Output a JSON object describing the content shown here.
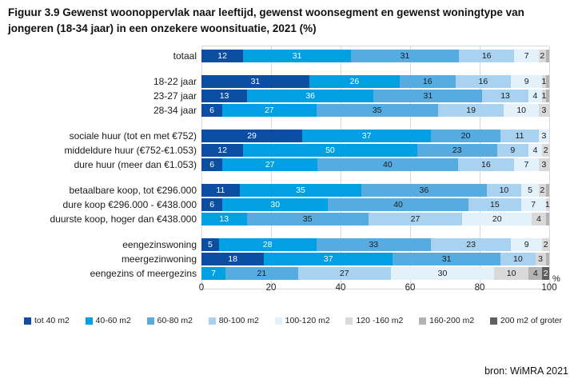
{
  "title": "Figuur 3.9 Gewenst woonoppervlak naar leeftijd, gewenst woonsegment en gewenst woningtype van jongeren (18-34 jaar) in een onzekere woonsituatie, 2021 (%)",
  "source": "bron: WiMRA 2021",
  "chart_data": {
    "type": "bar",
    "orientation": "horizontal",
    "stacked": true,
    "unit": "%",
    "axis": {
      "ticks": [
        0,
        20,
        40,
        60,
        80,
        100
      ],
      "max": 100,
      "unit_label": "%"
    },
    "grid": true,
    "legend_position": "bottom",
    "legend": [
      {
        "label": "tot 40 m2",
        "color": "#0b4ea2"
      },
      {
        "label": "40-60 m2",
        "color": "#00a0e3"
      },
      {
        "label": "60-80 m2",
        "color": "#56ace0"
      },
      {
        "label": "80-100 m2",
        "color": "#a9d2f0"
      },
      {
        "label": "100-120 m2",
        "color": "#e3f1fb"
      },
      {
        "label": "120 -160 m2",
        "color": "#d9d9d9"
      },
      {
        "label": "160-200 m2",
        "color": "#b3b3b3"
      },
      {
        "label": "200 m2 of groter",
        "color": "#5f5f5f"
      }
    ],
    "groups": [
      {
        "rows": [
          {
            "label": "totaal",
            "values": [
              12,
              31,
              31,
              16,
              7,
              2,
              1,
              0
            ],
            "display": [
              "12",
              "31",
              "31",
              "16",
              "7",
              "2",
              "",
              ""
            ]
          }
        ]
      },
      {
        "rows": [
          {
            "label": "18-22 jaar",
            "values": [
              31,
              26,
              16,
              16,
              9,
              1,
              1,
              0
            ],
            "display": [
              "31",
              "26",
              "16",
              "16",
              "9",
              "1",
              "",
              ""
            ]
          },
          {
            "label": "23-27 jaar",
            "values": [
              13,
              36,
              31,
              13,
              4,
              1,
              1,
              0
            ],
            "display": [
              "13",
              "36",
              "31",
              "13",
              "4",
              "1",
              "",
              ""
            ]
          },
          {
            "label": "28-34 jaar",
            "values": [
              6,
              27,
              35,
              19,
              10,
              3,
              0,
              0
            ],
            "display": [
              "6",
              "27",
              "35",
              "19",
              "10",
              "3",
              "",
              ""
            ]
          }
        ]
      },
      {
        "rows": [
          {
            "label": "sociale huur (tot en met €752)",
            "values": [
              29,
              37,
              20,
              11,
              3,
              0,
              0,
              0
            ],
            "display": [
              "29",
              "37",
              "20",
              "11",
              "3",
              "",
              "",
              ""
            ]
          },
          {
            "label": "middeldure huur (€752-€1.053)",
            "values": [
              12,
              50,
              23,
              9,
              4,
              2,
              0,
              0
            ],
            "display": [
              "12",
              "50",
              "23",
              "9",
              "4",
              "2",
              "",
              ""
            ]
          },
          {
            "label": "dure huur (meer dan €1.053)",
            "values": [
              6,
              27,
              40,
              16,
              7,
              3,
              0,
              0
            ],
            "display": [
              "6",
              "27",
              "40",
              "16",
              "7",
              "3",
              "",
              ""
            ]
          }
        ]
      },
      {
        "rows": [
          {
            "label": "betaalbare koop, tot €296.000",
            "values": [
              11,
              35,
              36,
              10,
              5,
              2,
              1,
              0
            ],
            "display": [
              "11",
              "35",
              "36",
              "10",
              "5",
              "2",
              "",
              ""
            ]
          },
          {
            "label": "dure koop €296.000 - €438.000",
            "values": [
              6,
              30,
              40,
              15,
              7,
              1,
              0,
              0
            ],
            "display": [
              "6",
              "30",
              "40",
              "15",
              "7",
              "1",
              "",
              ""
            ]
          },
          {
            "label": "duurste koop, hoger dan €438.000",
            "values": [
              0,
              13,
              35,
              27,
              20,
              4,
              1,
              0
            ],
            "display": [
              "",
              "13",
              "35",
              "27",
              "20",
              "4",
              "",
              ""
            ]
          }
        ]
      },
      {
        "rows": [
          {
            "label": "eengezinswoning",
            "values": [
              5,
              28,
              33,
              23,
              9,
              2,
              0,
              0
            ],
            "display": [
              "5",
              "28",
              "33",
              "23",
              "9",
              "2",
              "",
              ""
            ]
          },
          {
            "label": "meergezinwoning",
            "values": [
              18,
              37,
              31,
              10,
              0,
              3,
              1,
              0
            ],
            "display": [
              "18",
              "37",
              "31",
              "10",
              "",
              "3",
              "",
              ""
            ]
          },
          {
            "label": "eengezins of meergezins",
            "values": [
              0,
              7,
              21,
              27,
              30,
              10,
              4,
              2
            ],
            "display": [
              "",
              "7",
              "21",
              "27",
              "30",
              "10",
              "4",
              "2"
            ]
          }
        ]
      }
    ]
  }
}
